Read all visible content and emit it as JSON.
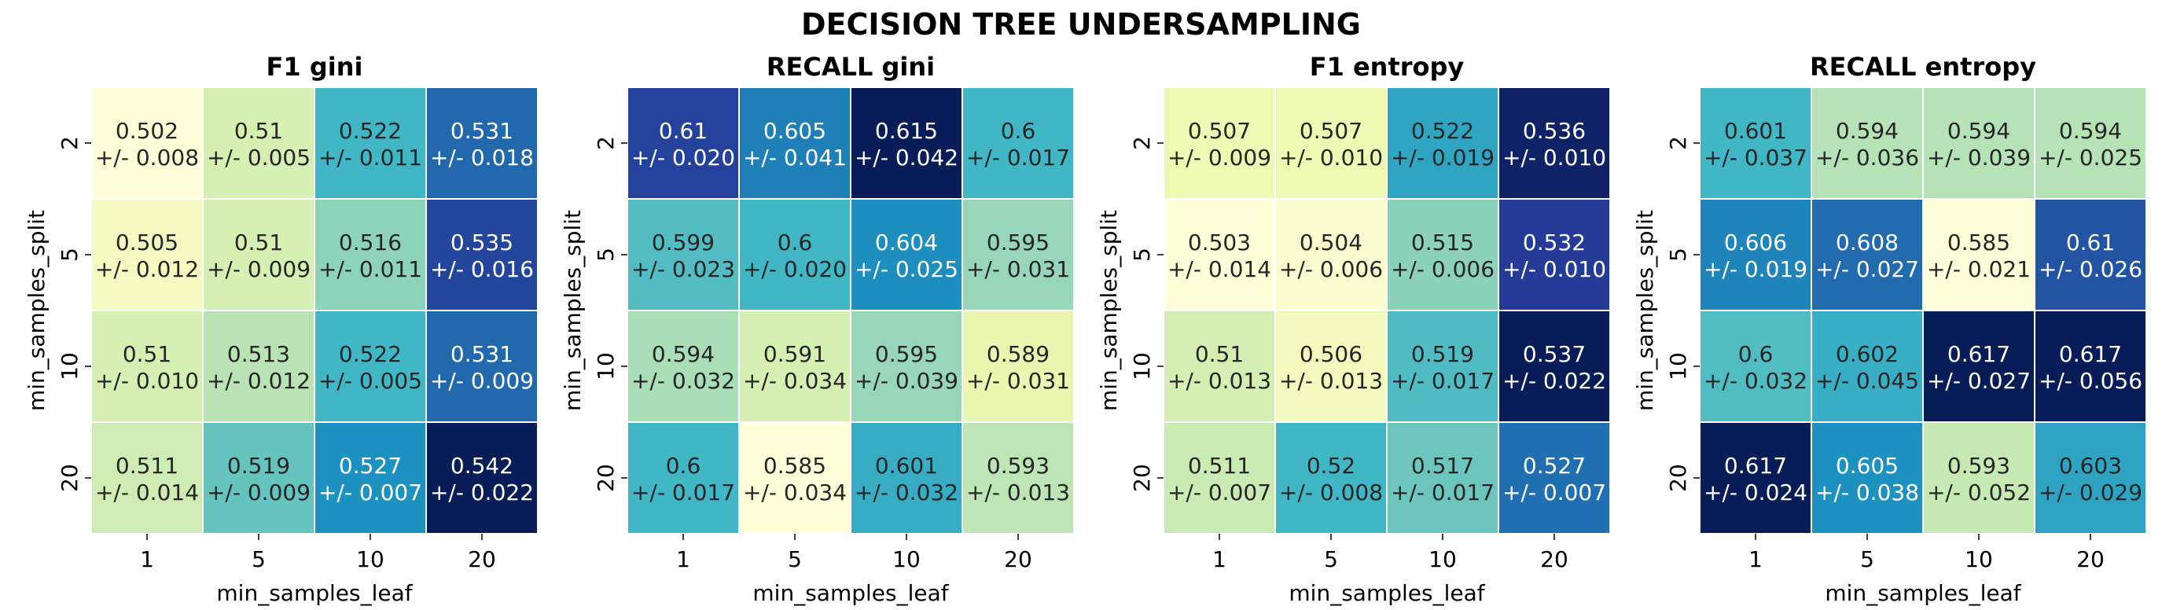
{
  "suptitle": "DECISION TREE UNDERSAMPLING",
  "chart_data": [
    {
      "type": "heatmap",
      "title": "F1   gini",
      "xlabel": "min_samples_leaf",
      "ylabel": "min_samples_split",
      "x_categories": [
        "1",
        "5",
        "10",
        "20"
      ],
      "y_categories": [
        "2",
        "5",
        "10",
        "20"
      ],
      "colormap": "YlGnBu",
      "values": [
        [
          0.502,
          0.51,
          0.522,
          0.531
        ],
        [
          0.505,
          0.51,
          0.516,
          0.535
        ],
        [
          0.51,
          0.513,
          0.522,
          0.531
        ],
        [
          0.511,
          0.519,
          0.527,
          0.542
        ]
      ],
      "errors": [
        [
          "0.008",
          "0.005",
          "0.011",
          "0.018"
        ],
        [
          "0.012",
          "0.009",
          "0.011",
          "0.016"
        ],
        [
          "0.010",
          "0.012",
          "0.005",
          "0.009"
        ],
        [
          "0.014",
          "0.009",
          "0.007",
          "0.022"
        ]
      ]
    },
    {
      "type": "heatmap",
      "title": "RECALL   gini",
      "xlabel": "min_samples_leaf",
      "ylabel": "min_samples_split",
      "x_categories": [
        "1",
        "5",
        "10",
        "20"
      ],
      "y_categories": [
        "2",
        "5",
        "10",
        "20"
      ],
      "colormap": "YlGnBu",
      "values": [
        [
          0.61,
          0.605,
          0.615,
          0.6
        ],
        [
          0.599,
          0.6,
          0.604,
          0.595
        ],
        [
          0.594,
          0.591,
          0.595,
          0.589
        ],
        [
          0.6,
          0.585,
          0.601,
          0.593
        ]
      ],
      "errors": [
        [
          "0.020",
          "0.041",
          "0.042",
          "0.017"
        ],
        [
          "0.023",
          "0.020",
          "0.025",
          "0.031"
        ],
        [
          "0.032",
          "0.034",
          "0.039",
          "0.031"
        ],
        [
          "0.017",
          "0.034",
          "0.032",
          "0.013"
        ]
      ]
    },
    {
      "type": "heatmap",
      "title": "F1   entropy",
      "xlabel": "min_samples_leaf",
      "ylabel": "min_samples_split",
      "x_categories": [
        "1",
        "5",
        "10",
        "20"
      ],
      "y_categories": [
        "2",
        "5",
        "10",
        "20"
      ],
      "colormap": "YlGnBu",
      "values": [
        [
          0.507,
          0.507,
          0.522,
          0.536
        ],
        [
          0.503,
          0.504,
          0.515,
          0.532
        ],
        [
          0.51,
          0.506,
          0.519,
          0.537
        ],
        [
          0.511,
          0.52,
          0.517,
          0.527
        ]
      ],
      "errors": [
        [
          "0.009",
          "0.010",
          "0.019",
          "0.010"
        ],
        [
          "0.014",
          "0.006",
          "0.006",
          "0.010"
        ],
        [
          "0.013",
          "0.013",
          "0.017",
          "0.022"
        ],
        [
          "0.007",
          "0.008",
          "0.017",
          "0.007"
        ]
      ]
    },
    {
      "type": "heatmap",
      "title": "RECALL   entropy",
      "xlabel": "min_samples_leaf",
      "ylabel": "min_samples_split",
      "x_categories": [
        "1",
        "5",
        "10",
        "20"
      ],
      "y_categories": [
        "2",
        "5",
        "10",
        "20"
      ],
      "colormap": "YlGnBu",
      "values": [
        [
          0.601,
          0.594,
          0.594,
          0.594
        ],
        [
          0.606,
          0.608,
          0.585,
          0.61
        ],
        [
          0.6,
          0.602,
          0.617,
          0.617
        ],
        [
          0.617,
          0.605,
          0.593,
          0.603
        ]
      ],
      "errors": [
        [
          "0.037",
          "0.036",
          "0.039",
          "0.025"
        ],
        [
          "0.019",
          "0.027",
          "0.021",
          "0.026"
        ],
        [
          "0.032",
          "0.045",
          "0.027",
          "0.056"
        ],
        [
          "0.024",
          "0.038",
          "0.052",
          "0.029"
        ]
      ]
    }
  ]
}
